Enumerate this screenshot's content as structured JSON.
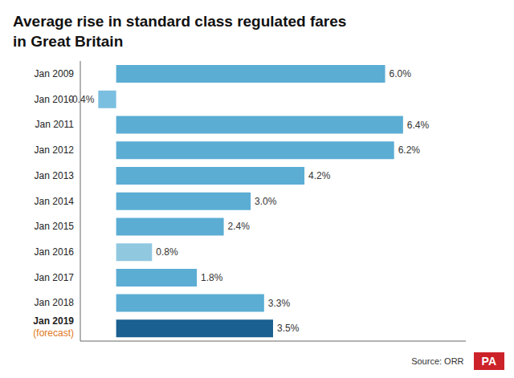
{
  "chart_data": {
    "type": "bar",
    "orientation": "horizontal",
    "title": "Average rise in standard class regulated fares\nin Great Britain",
    "categories": [
      "Jan 2009",
      "Jan 2010",
      "Jan 2011",
      "Jan 2012",
      "Jan 2013",
      "Jan 2014",
      "Jan 2015",
      "Jan 2016",
      "Jan 2017",
      "Jan 2018",
      "Jan 2019"
    ],
    "values": [
      6.0,
      -0.4,
      6.4,
      6.2,
      4.2,
      3.0,
      2.4,
      0.8,
      1.8,
      3.3,
      3.5
    ],
    "value_labels": [
      "6.0%",
      "-0.4%",
      "6.4%",
      "6.2%",
      "4.2%",
      "3.0%",
      "2.4%",
      "0.8%",
      "1.8%",
      "3.3%",
      "3.5%"
    ],
    "data_labels": true,
    "colors": [
      "#5badd4",
      "#7bbfe0",
      "#5badd4",
      "#5badd4",
      "#5badd4",
      "#5badd4",
      "#5badd4",
      "#90c8e0",
      "#5badd4",
      "#5badd4",
      "#1a6090"
    ],
    "xlim": [
      -0.8,
      7.8
    ],
    "tick_labels": "y",
    "grid": false,
    "annotations": [
      {
        "text": "(forecast)",
        "category": "Jan 2019",
        "color": "#e07820"
      },
      {
        "text": "Source: ORR"
      },
      {
        "text": "PA",
        "color": "#cc2229"
      }
    ]
  }
}
